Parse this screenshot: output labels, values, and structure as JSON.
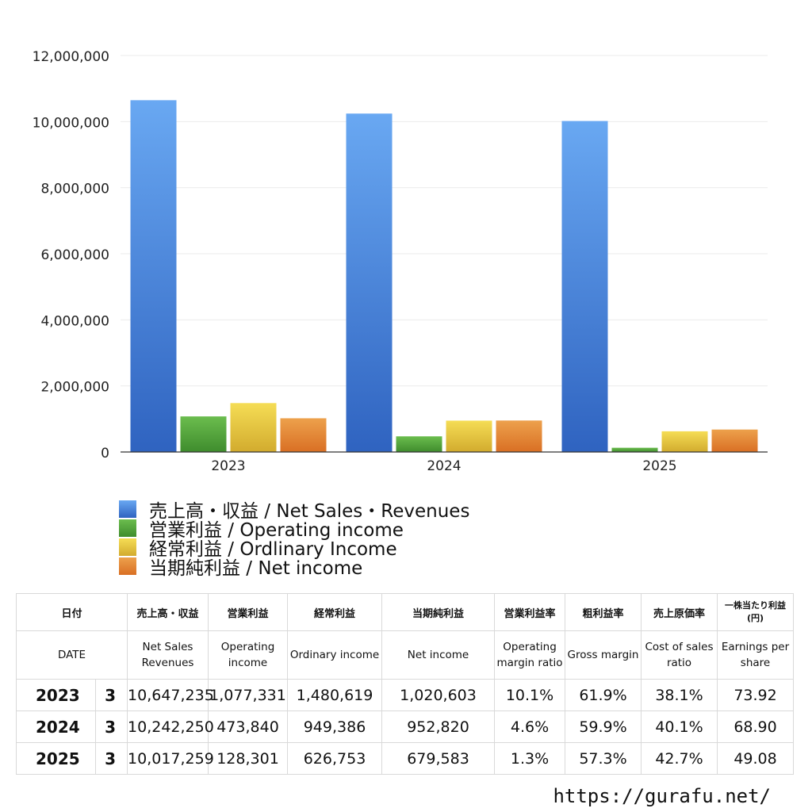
{
  "chart_data": {
    "type": "bar",
    "categories": [
      "2023",
      "2024",
      "2025"
    ],
    "series": [
      {
        "name": "売上高・収益 / Net Sales・Revenues",
        "values": [
          10647235,
          10242250,
          10017259
        ],
        "color": "#3a7bd5"
      },
      {
        "name": "営業利益 / Operating income",
        "values": [
          1077331,
          473840,
          128301
        ],
        "color": "#4f9e3a"
      },
      {
        "name": "経常利益 / Ordlinary Income",
        "values": [
          1480619,
          949386,
          626753
        ],
        "color": "#e0c43a"
      },
      {
        "name": "当期純利益 / Net income",
        "values": [
          1020603,
          952820,
          679583
        ],
        "color": "#e07b2e"
      }
    ],
    "ylim": [
      0,
      12000000
    ],
    "yticks": [
      "0",
      "2,000,000",
      "4,000,000",
      "6,000,000",
      "8,000,000",
      "10,000,000",
      "12,000,000"
    ],
    "grid": true,
    "legend_position": "bottom-left"
  },
  "table": {
    "headers_jp": [
      "日付",
      "売上高・収益",
      "営業利益",
      "経常利益",
      "当期純利益",
      "営業利益率",
      "粗利益率",
      "売上原価率",
      "一株当たり利益(円)"
    ],
    "headers_en": [
      "DATE",
      "Net Sales Revenues",
      "Operating income",
      "Ordinary income",
      "Net income",
      "Operating margin ratio",
      "Gross margin",
      "Cost of sales ratio",
      "Earnings per share"
    ],
    "rows": [
      {
        "year": "2023",
        "month": "3",
        "sales": "10,647,235",
        "op": "1,077,331",
        "ord": "1,480,619",
        "net": "1,020,603",
        "opm": "10.1%",
        "gross": "61.9%",
        "cost": "38.1%",
        "eps": "73.92"
      },
      {
        "year": "2024",
        "month": "3",
        "sales": "10,242,250",
        "op": "473,840",
        "ord": "949,386",
        "net": "952,820",
        "opm": "4.6%",
        "gross": "59.9%",
        "cost": "40.1%",
        "eps": "68.90"
      },
      {
        "year": "2025",
        "month": "3",
        "sales": "10,017,259",
        "op": "128,301",
        "ord": "626,753",
        "net": "679,583",
        "opm": "1.3%",
        "gross": "57.3%",
        "cost": "42.7%",
        "eps": "49.08"
      }
    ]
  },
  "footer": {
    "url": "https://gurafu.net/"
  }
}
